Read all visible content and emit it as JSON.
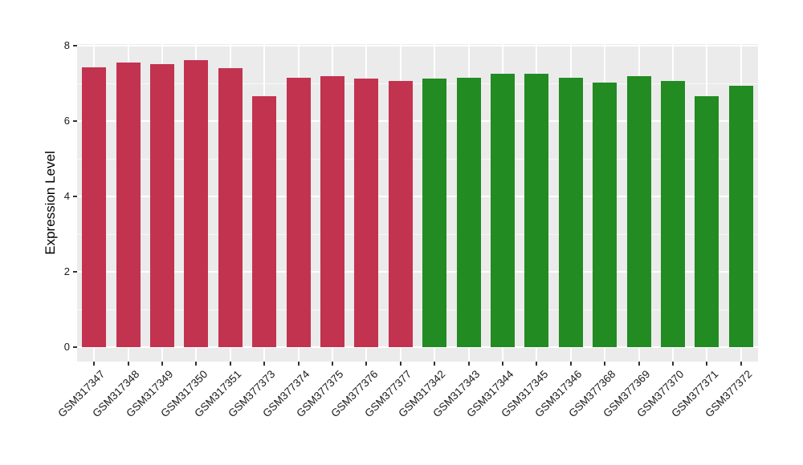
{
  "chart_data": {
    "type": "bar",
    "title": "",
    "xlabel": "",
    "ylabel": "Expression Level",
    "ylim": [
      0,
      8
    ],
    "yticks": [
      0,
      2,
      4,
      6,
      8
    ],
    "yticks_minor": [
      1,
      3,
      5,
      7
    ],
    "grid": "on",
    "legend_position": "none",
    "panel_background": "#EBEBEB",
    "gridline_color": "#FFFFFF",
    "tick_color": "#333333",
    "text_color": "#1A1A1A",
    "group_colors": {
      "group1": "#C23350",
      "group2": "#228B22"
    },
    "bars": [
      {
        "label": "GSM317347",
        "value": 7.43,
        "group": "group1"
      },
      {
        "label": "GSM317348",
        "value": 7.56,
        "group": "group1"
      },
      {
        "label": "GSM317349",
        "value": 7.51,
        "group": "group1"
      },
      {
        "label": "GSM317350",
        "value": 7.62,
        "group": "group1"
      },
      {
        "label": "GSM317351",
        "value": 7.41,
        "group": "group1"
      },
      {
        "label": "GSM377373",
        "value": 6.67,
        "group": "group1"
      },
      {
        "label": "GSM377374",
        "value": 7.14,
        "group": "group1"
      },
      {
        "label": "GSM377375",
        "value": 7.2,
        "group": "group1"
      },
      {
        "label": "GSM377376",
        "value": 7.13,
        "group": "group1"
      },
      {
        "label": "GSM377377",
        "value": 7.06,
        "group": "group1"
      },
      {
        "label": "GSM317342",
        "value": 7.13,
        "group": "group2"
      },
      {
        "label": "GSM317343",
        "value": 7.14,
        "group": "group2"
      },
      {
        "label": "GSM317344",
        "value": 7.25,
        "group": "group2"
      },
      {
        "label": "GSM317345",
        "value": 7.25,
        "group": "group2"
      },
      {
        "label": "GSM317346",
        "value": 7.14,
        "group": "group2"
      },
      {
        "label": "GSM377368",
        "value": 7.03,
        "group": "group2"
      },
      {
        "label": "GSM377369",
        "value": 7.19,
        "group": "group2"
      },
      {
        "label": "GSM377370",
        "value": 7.06,
        "group": "group2"
      },
      {
        "label": "GSM377371",
        "value": 6.65,
        "group": "group2"
      },
      {
        "label": "GSM377372",
        "value": 6.94,
        "group": "group2"
      }
    ]
  }
}
